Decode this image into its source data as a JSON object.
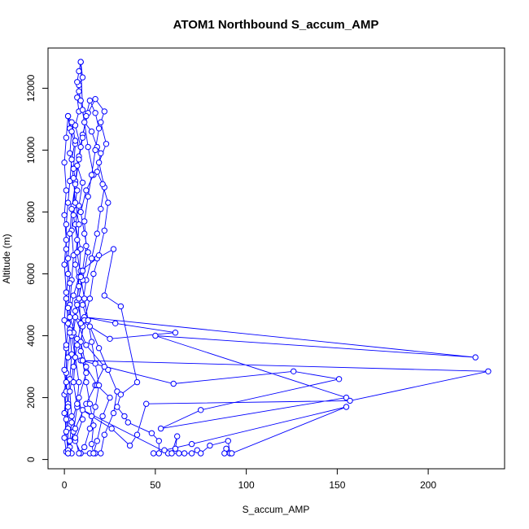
{
  "chart_data": {
    "type": "line",
    "title": "ATOM1 Northbound S_accum_AMP",
    "xlabel": "S_accum_AMP",
    "ylabel": "Altitude (m)",
    "xlim": [
      -9,
      242
    ],
    "ylim": [
      -300,
      13300
    ],
    "x_ticks": [
      0,
      50,
      100,
      150,
      200
    ],
    "y_ticks": [
      0,
      2000,
      4000,
      6000,
      8000,
      10000,
      12000
    ],
    "x_tick_labels": [
      "0",
      "50",
      "100",
      "150",
      "200"
    ],
    "y_tick_labels": [
      "0",
      "2000",
      "4000",
      "6000",
      "8000",
      "10000",
      "12000"
    ],
    "grid": false,
    "legend": "none",
    "color": "#0000ff",
    "marker": "open-circle",
    "series": [
      {
        "values": [
          [
            9,
            12850
          ],
          [
            10,
            12350
          ],
          [
            8,
            12100
          ],
          [
            7,
            11700
          ],
          [
            8,
            11250
          ],
          [
            6,
            10800
          ],
          [
            9,
            10100
          ],
          [
            7,
            9500
          ],
          [
            10,
            8950
          ],
          [
            8,
            8200
          ],
          [
            6,
            7600
          ],
          [
            9,
            6800
          ],
          [
            8,
            5900
          ],
          [
            7,
            5100
          ],
          [
            10,
            4300
          ],
          [
            9,
            3500
          ],
          [
            12,
            2800
          ],
          [
            8,
            2000
          ],
          [
            10,
            1300
          ],
          [
            6,
            600
          ],
          [
            9,
            200
          ],
          [
            14,
            200
          ],
          [
            17,
            200
          ],
          [
            20,
            200
          ],
          [
            22,
            800
          ],
          [
            27,
            1500
          ],
          [
            29,
            2200
          ],
          [
            24,
            2900
          ],
          [
            19,
            3600
          ],
          [
            14,
            4300
          ],
          [
            10,
            5000
          ],
          [
            12,
            5800
          ],
          [
            15,
            6500
          ],
          [
            18,
            7300
          ],
          [
            20,
            8100
          ],
          [
            22,
            8800
          ],
          [
            19,
            9600
          ],
          [
            23,
            10200
          ],
          [
            20,
            10900
          ],
          [
            22,
            11250
          ],
          [
            17,
            11650
          ],
          [
            13,
            11200
          ],
          [
            10,
            10500
          ],
          [
            8,
            9800
          ],
          [
            6,
            9000
          ],
          [
            5,
            8200
          ],
          [
            4,
            7400
          ],
          [
            5,
            6600
          ],
          [
            4,
            5800
          ],
          [
            3,
            5000
          ],
          [
            3,
            4200
          ],
          [
            4,
            3400
          ],
          [
            3,
            2600
          ],
          [
            2,
            1800
          ],
          [
            2,
            1000
          ],
          [
            2,
            200
          ],
          [
            3,
            400
          ],
          [
            5,
            900
          ],
          [
            7,
            1700
          ],
          [
            5,
            2500
          ],
          [
            6,
            3300
          ],
          [
            4,
            4000
          ],
          [
            6,
            4800
          ],
          [
            8,
            5600
          ],
          [
            6,
            6300
          ],
          [
            7,
            7100
          ],
          [
            5,
            7900
          ],
          [
            7,
            8700
          ],
          [
            5,
            9400
          ],
          [
            6,
            10200
          ],
          [
            3,
            10700
          ],
          [
            2,
            11100
          ],
          [
            4,
            10900
          ],
          [
            6,
            10300
          ],
          [
            4,
            9700
          ],
          [
            3,
            9000
          ],
          [
            2,
            8300
          ],
          [
            1,
            7600
          ],
          [
            1,
            6800
          ],
          [
            2,
            6000
          ],
          [
            1,
            5200
          ],
          [
            2,
            4400
          ],
          [
            1,
            3600
          ],
          [
            1,
            2800
          ],
          [
            0,
            2100
          ],
          [
            1,
            1300
          ],
          [
            0,
            700
          ],
          [
            1,
            250
          ],
          [
            6,
            1000
          ],
          [
            12,
            1800
          ],
          [
            17,
            2400
          ],
          [
            22,
            3000
          ],
          [
            12,
            3700
          ],
          [
            6,
            4600
          ],
          [
            25,
            3900
          ],
          [
            61,
            4100
          ],
          [
            28,
            4400
          ],
          [
            11,
            4600
          ],
          [
            226,
            3300
          ],
          [
            50,
            4000
          ],
          [
            155,
            2000
          ],
          [
            53,
            1000
          ],
          [
            75,
            1600
          ],
          [
            151,
            2600
          ],
          [
            126,
            2850
          ],
          [
            60,
            2450
          ],
          [
            9,
            3200
          ],
          [
            233,
            2850
          ],
          [
            157,
            1900
          ],
          [
            45,
            1800
          ],
          [
            40,
            800
          ],
          [
            36,
            450
          ],
          [
            26,
            1000
          ],
          [
            15,
            1400
          ],
          [
            10,
            1600
          ],
          [
            57,
            200
          ],
          [
            61,
            350
          ],
          [
            62,
            750
          ],
          [
            59,
            200
          ],
          [
            63,
            200
          ],
          [
            66,
            200
          ],
          [
            70,
            200
          ],
          [
            73,
            300
          ],
          [
            75,
            200
          ],
          [
            80,
            450
          ],
          [
            90,
            600
          ],
          [
            91,
            200
          ],
          [
            89,
            350
          ],
          [
            88,
            200
          ],
          [
            92,
            200
          ],
          [
            155,
            1700
          ],
          [
            70,
            500
          ],
          [
            55,
            300
          ],
          [
            49,
            200
          ],
          [
            52,
            200
          ],
          [
            52,
            600
          ],
          [
            48,
            850
          ],
          [
            35,
            1200
          ],
          [
            33,
            1400
          ],
          [
            29,
            1700
          ],
          [
            31,
            2100
          ],
          [
            40,
            2500
          ],
          [
            31,
            4950
          ],
          [
            22,
            5300
          ],
          [
            27,
            6800
          ],
          [
            18,
            6500
          ],
          [
            9,
            6100
          ],
          [
            5,
            5300
          ],
          [
            3,
            4600
          ],
          [
            7,
            3900
          ],
          [
            10,
            3200
          ],
          [
            12,
            2500
          ],
          [
            14,
            1800
          ],
          [
            16,
            1100
          ],
          [
            15,
            500
          ],
          [
            16,
            200
          ],
          [
            18,
            600
          ],
          [
            21,
            1400
          ],
          [
            25,
            2000
          ],
          [
            18,
            2400
          ],
          [
            12,
            3000
          ],
          [
            9,
            3800
          ],
          [
            11,
            4500
          ],
          [
            14,
            5200
          ],
          [
            16,
            6000
          ],
          [
            19,
            6600
          ],
          [
            22,
            7400
          ],
          [
            24,
            8300
          ],
          [
            21,
            8900
          ],
          [
            18,
            9300
          ],
          [
            20,
            9900
          ],
          [
            18,
            10100
          ],
          [
            15,
            10600
          ],
          [
            11,
            10900
          ],
          [
            9,
            11600
          ],
          [
            8,
            11900
          ],
          [
            7,
            12200
          ],
          [
            8,
            12550
          ],
          [
            9,
            12850
          ],
          [
            10,
            11300
          ],
          [
            13,
            10100
          ],
          [
            16,
            9200
          ],
          [
            12,
            8700
          ],
          [
            9,
            8000
          ],
          [
            11,
            7300
          ],
          [
            13,
            6700
          ],
          [
            10,
            5800
          ],
          [
            7,
            5000
          ],
          [
            5,
            4100
          ],
          [
            6,
            3300
          ],
          [
            8,
            2500
          ],
          [
            7,
            1800
          ],
          [
            4,
            1200
          ],
          [
            3,
            600
          ],
          [
            4,
            200
          ],
          [
            2,
            300
          ],
          [
            0,
            1500
          ],
          [
            1,
            2200
          ],
          [
            0,
            2900
          ],
          [
            1,
            3700
          ],
          [
            0,
            4500
          ],
          [
            1,
            5400
          ],
          [
            0,
            6300
          ],
          [
            1,
            7100
          ],
          [
            0,
            7900
          ],
          [
            1,
            8700
          ],
          [
            0,
            9600
          ],
          [
            1,
            10400
          ],
          [
            2,
            11100
          ],
          [
            4,
            10600
          ],
          [
            3,
            9900
          ],
          [
            5,
            9100
          ],
          [
            6,
            8300
          ],
          [
            8,
            7600
          ],
          [
            7,
            6700
          ],
          [
            9,
            5900
          ],
          [
            11,
            5200
          ],
          [
            13,
            4500
          ],
          [
            15,
            3800
          ],
          [
            17,
            3100
          ],
          [
            19,
            2400
          ],
          [
            17,
            1700
          ],
          [
            14,
            1000
          ],
          [
            11,
            400
          ],
          [
            8,
            200
          ],
          [
            6,
            700
          ],
          [
            4,
            1400
          ],
          [
            3,
            2200
          ],
          [
            5,
            3000
          ],
          [
            7,
            3700
          ],
          [
            9,
            4400
          ],
          [
            8,
            5200
          ],
          [
            10,
            6100
          ],
          [
            12,
            6900
          ],
          [
            11,
            7700
          ],
          [
            13,
            8500
          ],
          [
            15,
            9200
          ],
          [
            17,
            10000
          ],
          [
            19,
            10700
          ],
          [
            17,
            11200
          ],
          [
            14,
            11600
          ],
          [
            12,
            11100
          ],
          [
            10,
            10400
          ],
          [
            8,
            9700
          ],
          [
            6,
            8900
          ],
          [
            4,
            8100
          ],
          [
            3,
            7300
          ],
          [
            2,
            6500
          ],
          [
            3,
            5700
          ],
          [
            2,
            4900
          ],
          [
            3,
            4100
          ],
          [
            2,
            3300
          ],
          [
            1,
            2500
          ],
          [
            2,
            1700
          ],
          [
            1,
            900
          ],
          [
            2,
            200
          ]
        ]
      }
    ]
  }
}
